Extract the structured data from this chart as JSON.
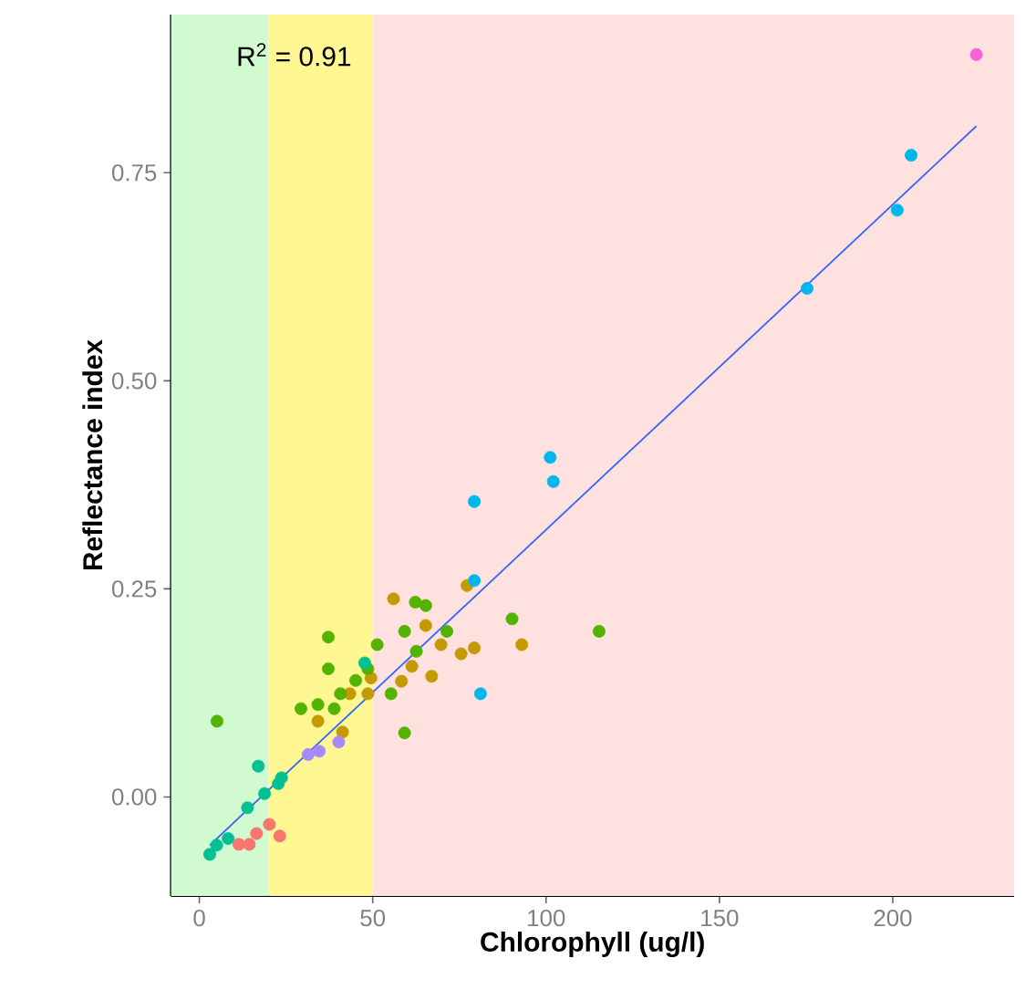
{
  "chart_data": {
    "type": "scatter",
    "xlabel": "Chlorophyll (ug/l)",
    "ylabel": "Reflectance index",
    "annotations": [
      "R$^{2}$ = 0.91"
    ],
    "xlim": [
      -8.2,
      235
    ],
    "ylim": [
      -0.119,
      0.94
    ],
    "xticks": [
      0,
      50,
      100,
      150,
      200
    ],
    "yticks": [
      {
        "value": 0,
        "label": "0.00"
      },
      {
        "value": 0.25,
        "label": "0.25"
      },
      {
        "value": 0.5,
        "label": "0.50"
      },
      {
        "value": 0.75,
        "label": "0.75"
      }
    ],
    "grid": false,
    "marker": "circle",
    "bands": [
      {
        "axis": "x",
        "from": -8.2,
        "to": 20,
        "color": "#d2fad0"
      },
      {
        "axis": "x",
        "from": 20,
        "to": 50,
        "color": "#fff791"
      },
      {
        "axis": "x",
        "from": 50,
        "to": 235,
        "color": "#ffe2e0"
      }
    ],
    "series": [
      {
        "color": "#f8766d",
        "x": [
          11.4,
          14.4,
          16.5,
          20.2,
          23.2
        ],
        "values": [
          -0.057,
          -0.057,
          -0.044,
          -0.033,
          -0.047
        ]
      },
      {
        "color": "#c49a00",
        "x": [
          34.2,
          41.3,
          43.4,
          49.5,
          48.6,
          56.0,
          65.3,
          58.3,
          61.3,
          67.0,
          69.7,
          77.2,
          75.5,
          79.3,
          93.0
        ],
        "values": [
          0.091,
          0.078,
          0.124,
          0.143,
          0.124,
          0.238,
          0.206,
          0.139,
          0.157,
          0.145,
          0.183,
          0.254,
          0.172,
          0.179,
          0.183
        ]
      },
      {
        "color": "#53b400",
        "x": [
          5.1,
          37.2,
          37.2,
          29.3,
          34.2,
          38.9,
          45.1,
          51.3,
          55.3,
          59.2,
          59.2,
          62.3,
          65.3,
          48.6,
          40.7,
          62.6,
          71.4,
          90.2,
          115.3
        ],
        "values": [
          0.091,
          0.192,
          0.154,
          0.106,
          0.111,
          0.106,
          0.14,
          0.183,
          0.124,
          0.077,
          0.199,
          0.234,
          0.23,
          0.154,
          0.124,
          0.175,
          0.199,
          0.214,
          0.199
        ]
      },
      {
        "color": "#00c094",
        "x": [
          3.0,
          5.0,
          8.3,
          13.9,
          17.0,
          18.8,
          22.8,
          23.7,
          47.7
        ],
        "values": [
          -0.069,
          -0.058,
          -0.05,
          -0.013,
          0.037,
          0.004,
          0.016,
          0.023,
          0.161
        ]
      },
      {
        "color": "#00b6eb",
        "x": [
          79.3,
          79.3,
          81.1,
          101.2,
          102.1,
          175.3,
          201.3,
          205.3
        ],
        "values": [
          0.355,
          0.26,
          0.124,
          0.408,
          0.379,
          0.611,
          0.705,
          0.771
        ]
      },
      {
        "color": "#a58aff",
        "x": [
          31.4,
          34.6,
          40.2
        ],
        "values": [
          0.051,
          0.055,
          0.066
        ]
      },
      {
        "color": "#fb61d7",
        "x": [
          224.1
        ],
        "values": [
          0.892
        ]
      },
      {
        "type": "line",
        "marker": "none",
        "color": "#3366ff",
        "x": [
          3.0,
          224.1
        ],
        "values": [
          -0.058,
          0.806
        ]
      }
    ]
  }
}
